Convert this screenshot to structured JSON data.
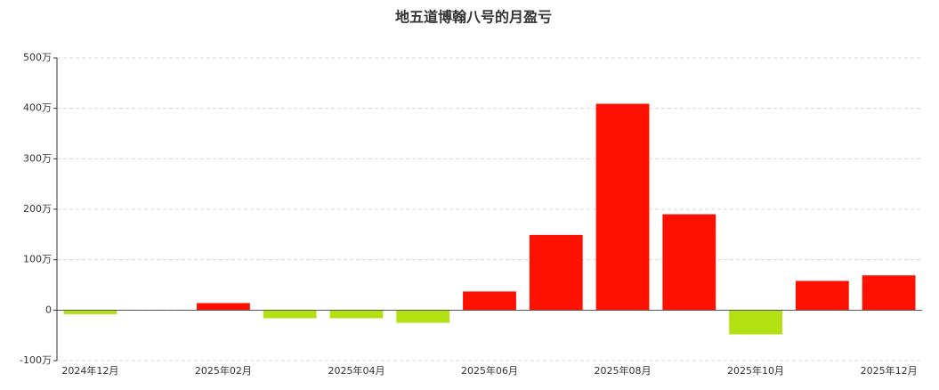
{
  "chart_data": {
    "type": "bar",
    "title": "地五道博翰八号的月盈亏",
    "categories": [
      "2024年12月",
      null,
      "2025年02月",
      null,
      "2025年04月",
      null,
      "2025年06月",
      null,
      "2025年08月",
      null,
      "2025年10月",
      null,
      "2025年12月"
    ],
    "values": [
      -8,
      0,
      14,
      -16,
      -16,
      -25,
      37,
      149,
      409,
      190,
      -48,
      58,
      69
    ],
    "positive_color": "#ff1100",
    "negative_color": "#b3e011",
    "ylim": [
      -100,
      500
    ],
    "yticks": [
      {
        "value": -100,
        "label": "-100万"
      },
      0,
      {
        "value": 100,
        "label": "100万"
      },
      {
        "value": 200,
        "label": "200万"
      },
      {
        "value": 300,
        "label": "300万"
      },
      {
        "value": 400,
        "label": "400万"
      },
      {
        "value": 500,
        "label": "500万"
      }
    ],
    "grid": true
  }
}
